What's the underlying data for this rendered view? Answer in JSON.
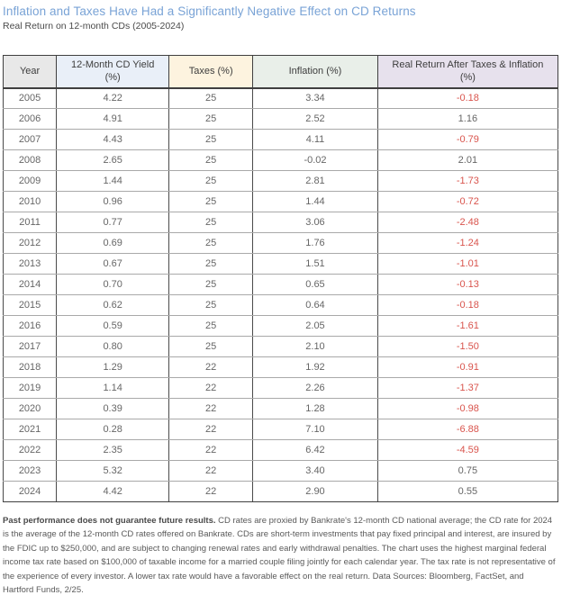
{
  "header": {
    "title": "Inflation and Taxes Have Had a Significantly Negative Effect on CD Returns",
    "subtitle": "Real Return on 12-month CDs (2005-2024)"
  },
  "colors": {
    "title_blue": "#79a3d6",
    "negative_red": "#d9544d",
    "header_year_bg": "#e8e8e8",
    "header_cd_yield_bg": "#e9eff8",
    "header_taxes_bg": "#fdf3df",
    "header_inflation_bg": "#e9efe9",
    "header_real_return_bg": "#e7e1ed"
  },
  "chart_data": {
    "type": "table",
    "title": "Inflation and Taxes Have Had a Significantly Negative Effect on CD Returns",
    "subtitle": "Real Return on 12-month CDs (2005-2024)",
    "columns": [
      {
        "key": "year",
        "label": "Year",
        "bg": "#e8e8e8",
        "width": "9.6%"
      },
      {
        "key": "cd_yield",
        "label": "12-Month CD Yield (%)",
        "bg": "#e9eff8",
        "width": "20.3%"
      },
      {
        "key": "taxes",
        "label": "Taxes (%)",
        "bg": "#fdf3df",
        "width": "15.1%"
      },
      {
        "key": "inflation",
        "label": "Inflation (%)",
        "bg": "#e9efe9",
        "width": "22.5%"
      },
      {
        "key": "real_return",
        "label": "Real Return After Taxes & Inflation (%)",
        "bg": "#e7e1ed",
        "width": "32.5%"
      }
    ],
    "rows": [
      {
        "year": "2005",
        "cd_yield": "4.22",
        "taxes": "25",
        "inflation": "3.34",
        "real_return": "-0.18"
      },
      {
        "year": "2006",
        "cd_yield": "4.91",
        "taxes": "25",
        "inflation": "2.52",
        "real_return": "1.16"
      },
      {
        "year": "2007",
        "cd_yield": "4.43",
        "taxes": "25",
        "inflation": "4.11",
        "real_return": "-0.79"
      },
      {
        "year": "2008",
        "cd_yield": "2.65",
        "taxes": "25",
        "inflation": "-0.02",
        "real_return": "2.01"
      },
      {
        "year": "2009",
        "cd_yield": "1.44",
        "taxes": "25",
        "inflation": "2.81",
        "real_return": "-1.73"
      },
      {
        "year": "2010",
        "cd_yield": "0.96",
        "taxes": "25",
        "inflation": "1.44",
        "real_return": "-0.72"
      },
      {
        "year": "2011",
        "cd_yield": "0.77",
        "taxes": "25",
        "inflation": "3.06",
        "real_return": "-2.48"
      },
      {
        "year": "2012",
        "cd_yield": "0.69",
        "taxes": "25",
        "inflation": "1.76",
        "real_return": "-1.24"
      },
      {
        "year": "2013",
        "cd_yield": "0.67",
        "taxes": "25",
        "inflation": "1.51",
        "real_return": "-1.01"
      },
      {
        "year": "2014",
        "cd_yield": "0.70",
        "taxes": "25",
        "inflation": "0.65",
        "real_return": "-0.13"
      },
      {
        "year": "2015",
        "cd_yield": "0.62",
        "taxes": "25",
        "inflation": "0.64",
        "real_return": "-0.18"
      },
      {
        "year": "2016",
        "cd_yield": "0.59",
        "taxes": "25",
        "inflation": "2.05",
        "real_return": "-1.61"
      },
      {
        "year": "2017",
        "cd_yield": "0.80",
        "taxes": "25",
        "inflation": "2.10",
        "real_return": "-1.50"
      },
      {
        "year": "2018",
        "cd_yield": "1.29",
        "taxes": "22",
        "inflation": "1.92",
        "real_return": "-0.91"
      },
      {
        "year": "2019",
        "cd_yield": "1.14",
        "taxes": "22",
        "inflation": "2.26",
        "real_return": "-1.37"
      },
      {
        "year": "2020",
        "cd_yield": "0.39",
        "taxes": "22",
        "inflation": "1.28",
        "real_return": "-0.98"
      },
      {
        "year": "2021",
        "cd_yield": "0.28",
        "taxes": "22",
        "inflation": "7.10",
        "real_return": "-6.88"
      },
      {
        "year": "2022",
        "cd_yield": "2.35",
        "taxes": "22",
        "inflation": "6.42",
        "real_return": "-4.59"
      },
      {
        "year": "2023",
        "cd_yield": "5.32",
        "taxes": "22",
        "inflation": "3.40",
        "real_return": "0.75"
      },
      {
        "year": "2024",
        "cd_yield": "4.42",
        "taxes": "22",
        "inflation": "2.90",
        "real_return": "0.55"
      }
    ]
  },
  "footnote": {
    "bold": "Past performance does not guarantee future results.",
    "text": " CD rates are proxied by Bankrate's 12-month CD national average; the CD rate for 2024 is the average of the 12-month CD rates offered on Bankrate. CDs are short-term investments that pay fixed principal and interest, are insured by the FDIC up to $250,000, and are subject to changing renewal rates and early withdrawal penalties. The chart uses the highest marginal federal income tax rate based on $100,000 of taxable income for a married couple filing jointly for each calendar year. The tax rate is not representative of the experience of every investor. A lower tax rate would have a favorable effect on the real return. Data Sources: Bloomberg, FactSet, and Hartford Funds, 2/25."
  }
}
